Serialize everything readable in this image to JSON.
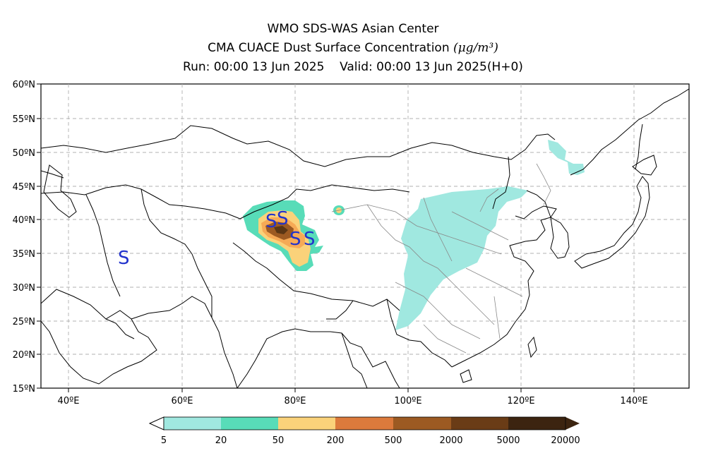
{
  "header": {
    "line1": "WMO SDS-WAS Asian Center",
    "line2_text": "CMA CUACE Dust Surface Concentration",
    "line2_unit": "(μg/m³)",
    "run_label": "Run: 00:00 13 Jun 2025",
    "valid_label": "Valid: 00:00 13 Jun 2025(H+0)"
  },
  "map": {
    "lat_labels": [
      "60ºN",
      "55ºN",
      "50ºN",
      "45ºN",
      "40ºN",
      "35ºN",
      "30ºN",
      "25ºN",
      "20ºN",
      "15ºN"
    ],
    "lon_labels": [
      "40ºE",
      "60ºE",
      "80ºE",
      "100ºE",
      "120ºE",
      "140ºE"
    ],
    "station_marker": "S",
    "dust_color_levels": [
      "5-20",
      "20-50",
      "50-200",
      "200-500"
    ]
  },
  "colorbar": {
    "ticks": [
      "5",
      "20",
      "50",
      "200",
      "500",
      "2000",
      "5000",
      "20000"
    ],
    "colors": [
      "#a0e8e0",
      "#58dcb8",
      "#fad27a",
      "#f6aa56",
      "#dc7a3c",
      "#9c5a22",
      "#6a3c16",
      "#3c2410"
    ]
  }
}
